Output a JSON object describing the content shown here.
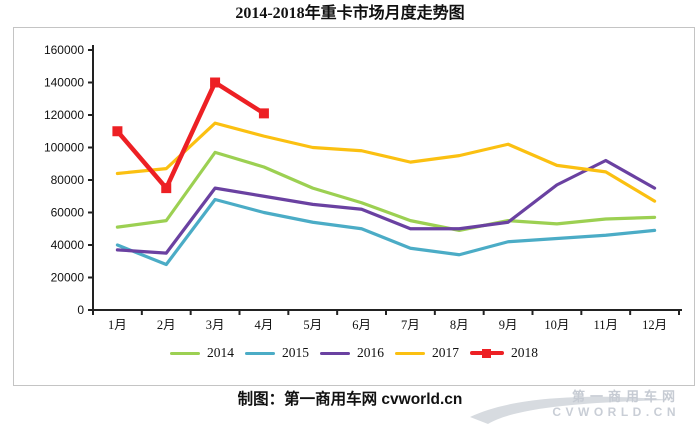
{
  "title": "2014-2018年重卡市场月度走势图",
  "caption": "制图：第一商用车网 cvworld.cn",
  "watermark": {
    "line1": "第一商用车网",
    "line2": "CVWORLD.CN"
  },
  "chart_data": {
    "type": "line",
    "title": "2014-2018年重卡市场月度走势图",
    "categories": [
      "1月",
      "2月",
      "3月",
      "4月",
      "5月",
      "6月",
      "7月",
      "8月",
      "9月",
      "10月",
      "11月",
      "12月"
    ],
    "series": [
      {
        "name": "2014",
        "color": "#9cd052",
        "values": [
          51000,
          55000,
          97000,
          88000,
          75000,
          66000,
          55000,
          49000,
          55000,
          53000,
          56000,
          57000
        ]
      },
      {
        "name": "2015",
        "color": "#4bacc6",
        "values": [
          40000,
          28000,
          68000,
          60000,
          54000,
          50000,
          38000,
          34000,
          42000,
          44000,
          46000,
          49000
        ]
      },
      {
        "name": "2016",
        "color": "#6a41a1",
        "values": [
          37000,
          35000,
          75000,
          70000,
          65000,
          62000,
          50000,
          50000,
          54000,
          77000,
          92000,
          75000
        ]
      },
      {
        "name": "2017",
        "color": "#fbc011",
        "values": [
          84000,
          87000,
          115000,
          107000,
          100000,
          98000,
          91000,
          95000,
          102000,
          89000,
          85000,
          67000
        ]
      },
      {
        "name": "2018",
        "color": "#ed2024",
        "marker": "square",
        "values": [
          110000,
          75000,
          140000,
          121000
        ]
      }
    ],
    "ylim": [
      0,
      160000
    ],
    "ytick_step": 20000,
    "xlabel": "",
    "ylabel": "",
    "grid": false,
    "legend_position": "bottom"
  }
}
